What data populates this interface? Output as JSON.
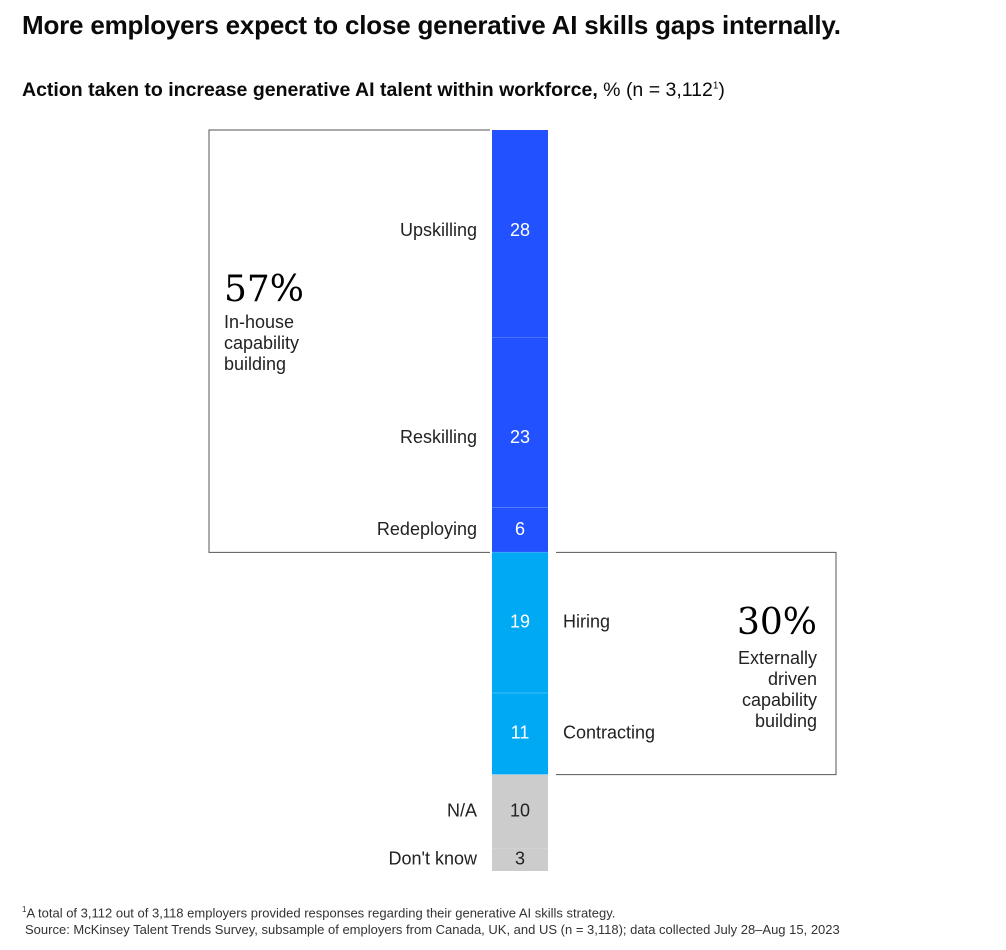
{
  "title": "More employers expect to close generative AI skills gaps internally.",
  "subtitle": {
    "bold": "Action taken to increase generative AI talent within workforce,",
    "normal": " % (n = 3,112",
    "sup": "1",
    "close": ")"
  },
  "chart_data": {
    "type": "bar",
    "orientation": "stacked-vertical",
    "unit": "%",
    "segments": [
      {
        "label": "Upskilling",
        "value": 28,
        "group": "in_house",
        "label_side": "left"
      },
      {
        "label": "Reskilling",
        "value": 23,
        "group": "in_house",
        "label_side": "left"
      },
      {
        "label": "Redeploying",
        "value": 6,
        "group": "in_house",
        "label_side": "left"
      },
      {
        "label": "Hiring",
        "value": 19,
        "group": "external",
        "label_side": "right"
      },
      {
        "label": "Contracting",
        "value": 11,
        "group": "external",
        "label_side": "right"
      },
      {
        "label": "N/A",
        "value": 10,
        "group": "other",
        "label_side": "left"
      },
      {
        "label": "Don't know",
        "value": 3,
        "group": "other",
        "label_side": "left"
      }
    ],
    "groups": {
      "in_house": {
        "pct": "57%",
        "desc": [
          "In-house",
          "capability",
          "building"
        ],
        "placement": "left"
      },
      "external": {
        "pct": "30%",
        "desc": [
          "Externally",
          "driven",
          "capability",
          "building"
        ],
        "placement": "right"
      }
    },
    "colors": {
      "in_house": "#2251ff",
      "external": "#00a9f4",
      "other": "#cccccc",
      "text_on_dark": "#ffffff",
      "text_on_light": "#222222",
      "box_border": "#555555"
    }
  },
  "footnotes": {
    "sup": "1",
    "note": "A total of 3,112 out of 3,118 employers provided responses regarding their generative AI skills strategy.",
    "source": "Source: McKinsey Talent Trends Survey, subsample of employers from Canada, UK, and US (n = 3,118); data collected July 28–Aug 15, 2023"
  }
}
